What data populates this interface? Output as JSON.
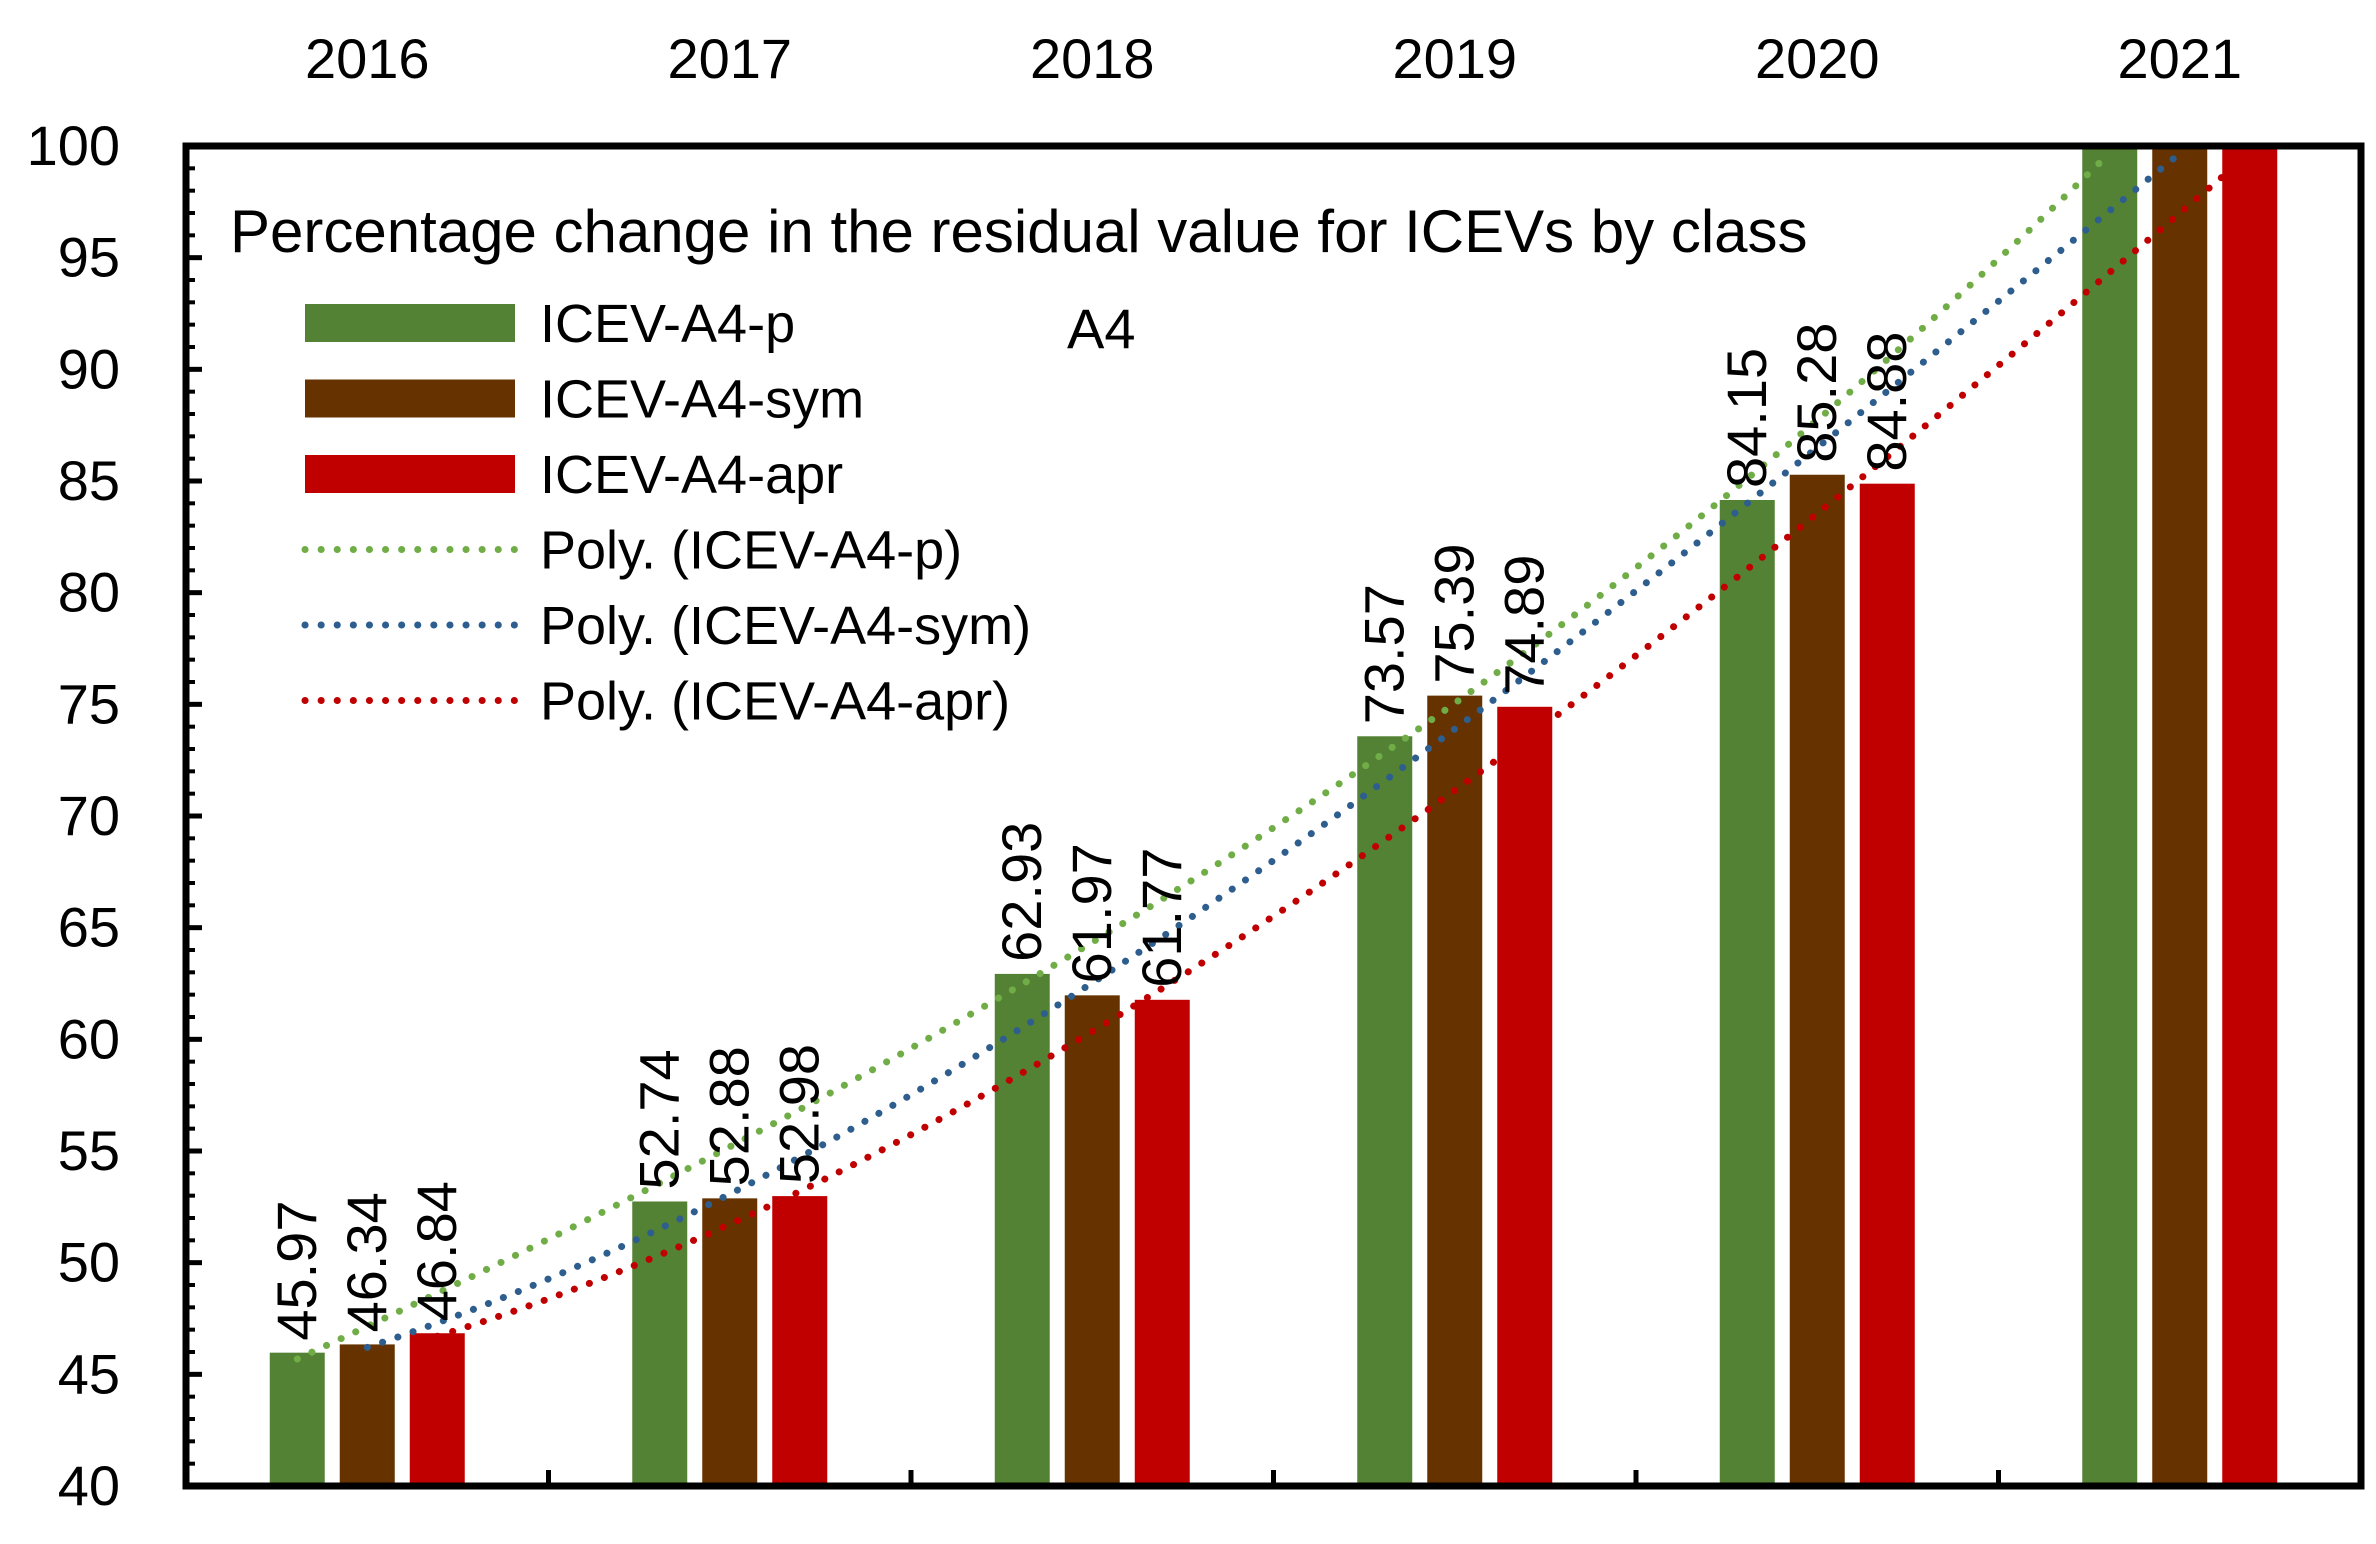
{
  "chart_data": {
    "type": "bar",
    "title": "Percentage change in the residual value for ICEVs by class",
    "annotation": "A4",
    "categories": [
      "2016",
      "2017",
      "2018",
      "2019",
      "2020",
      "2021"
    ],
    "ylim": [
      40,
      100
    ],
    "yticks": [
      "40",
      "45",
      "50",
      "55",
      "60",
      "65",
      "70",
      "75",
      "80",
      "85",
      "90",
      "95",
      "100"
    ],
    "xlabel": "",
    "ylabel": "",
    "category_axis_position": "top",
    "series": [
      {
        "name": "ICEV-A4-p",
        "color": "#548235",
        "values": [
          45.97,
          52.74,
          62.93,
          73.57,
          84.15,
          100
        ],
        "labels": [
          "45.97",
          "52.74",
          "62.93",
          "73.57",
          "84.15",
          ""
        ]
      },
      {
        "name": "ICEV-A4-sym",
        "color": "#663300",
        "values": [
          46.34,
          52.88,
          61.97,
          75.39,
          85.28,
          100
        ],
        "labels": [
          "46.34",
          "52.88",
          "61.97",
          "75.39",
          "85.28",
          ""
        ]
      },
      {
        "name": "ICEV-A4-apr",
        "color": "#C00000",
        "values": [
          46.84,
          52.98,
          61.77,
          74.89,
          84.88,
          100
        ],
        "labels": [
          "46.84",
          "52.98",
          "61.77",
          "74.89",
          "84.88",
          ""
        ]
      }
    ],
    "trendlines": [
      {
        "name": "Poly. (ICEV-A4-p)",
        "color": "#70AD47",
        "series": "ICEV-A4-p",
        "kind": "polynomial"
      },
      {
        "name": "Poly. (ICEV-A4-sym)",
        "color": "#2E5E8E",
        "series": "ICEV-A4-sym",
        "kind": "polynomial"
      },
      {
        "name": "Poly. (ICEV-A4-apr)",
        "color": "#C00000",
        "series": "ICEV-A4-apr",
        "kind": "polynomial"
      }
    ],
    "legend_position": "top-left",
    "grid": false
  }
}
